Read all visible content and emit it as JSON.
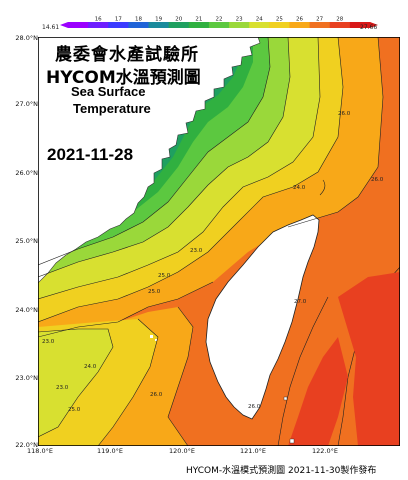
{
  "title_zh": "農委會水產試驗所",
  "title_model": "HYCOM水溫預測圖",
  "title_en_1": "Sea Surface",
  "title_en_2": "Temperature",
  "forecast_date": "2021-11-28",
  "footer": "HYCOM-水溫模式預測圖 2021-11-30製作發布",
  "colorbar": {
    "min_label": "14.61",
    "max_label": "27.66",
    "ticks": [
      "16",
      "17",
      "18",
      "19",
      "20",
      "21",
      "22",
      "23",
      "24",
      "25",
      "26",
      "27",
      "28"
    ],
    "colors": [
      "#9b00ff",
      "#6e1fff",
      "#3b3bff",
      "#2064d8",
      "#1a8a9c",
      "#1fa060",
      "#30b040",
      "#5cc840",
      "#9ad83a",
      "#d8e030",
      "#f0d020",
      "#f8a818",
      "#f07020",
      "#e84020",
      "#d81818"
    ]
  },
  "y_labels": [
    "28.0°N",
    "27.0°N",
    "26.0°N",
    "25.0°N",
    "24.0°N",
    "23.0°N",
    "22.0°N"
  ],
  "x_labels": [
    "118.0°E",
    "119.0°E",
    "120.0°E",
    "121.0°E",
    "122.0°E"
  ],
  "contour_labels": [
    "23.0",
    "24.0",
    "25.0",
    "25.0",
    "23.0",
    "23.0",
    "24.0",
    "25.0",
    "26.0",
    "26.0",
    "27.0",
    "26.0",
    "26.0"
  ]
}
